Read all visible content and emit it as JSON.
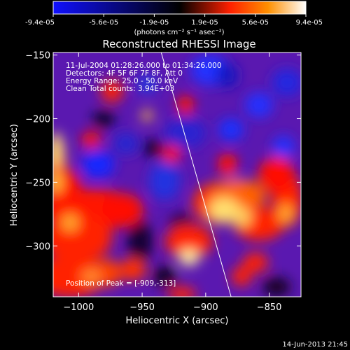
{
  "colorbar": {
    "tick_labels": [
      "-9.4e-05",
      "-5.6e-05",
      "-1.9e-05",
      "1.9e-05",
      "5.6e-05",
      "9.4e-05"
    ],
    "unit_label": "(photons cm⁻² s⁻¹ asec⁻²)",
    "colors": [
      "#1010ff",
      "#000000",
      "#ff2000",
      "#ff9000",
      "#ffffff"
    ]
  },
  "chart_data": {
    "type": "heatmap",
    "title": "Reconstructed RHESSI Image",
    "xlabel": "Heliocentric X (arcsec)",
    "ylabel": "Heliocentric Y (arcsec)",
    "xlim": [
      -1020,
      -825
    ],
    "ylim": [
      -340,
      -148
    ],
    "xticks": [
      -1000,
      -950,
      -900,
      -850
    ],
    "yticks": [
      -150,
      -200,
      -250,
      -300
    ],
    "xtick_labels": [
      "−1000",
      "−950",
      "−900",
      "−850"
    ],
    "ytick_labels": [
      "−150",
      "−200",
      "−250",
      "−300"
    ],
    "colorbar_range": [
      -9.4e-05,
      9.4e-05
    ],
    "limb_line": {
      "x": [
        -935,
        -880
      ],
      "y": [
        -148,
        -340
      ]
    },
    "peak": {
      "x": -909,
      "y": -313
    },
    "annotations": [
      "11-Jul-2004 01:28:26.000 to 01:34:26.000",
      "Detectors: 4F 5F 6F 7F 8F, Att 0",
      "Energy Range: 25.0 - 50.0 keV",
      "Clean    Total counts: 3.94E+03"
    ],
    "peak_label": "Position of Peak = [-909,-313]"
  },
  "footer_date": "14-Jun-2013 21:45"
}
